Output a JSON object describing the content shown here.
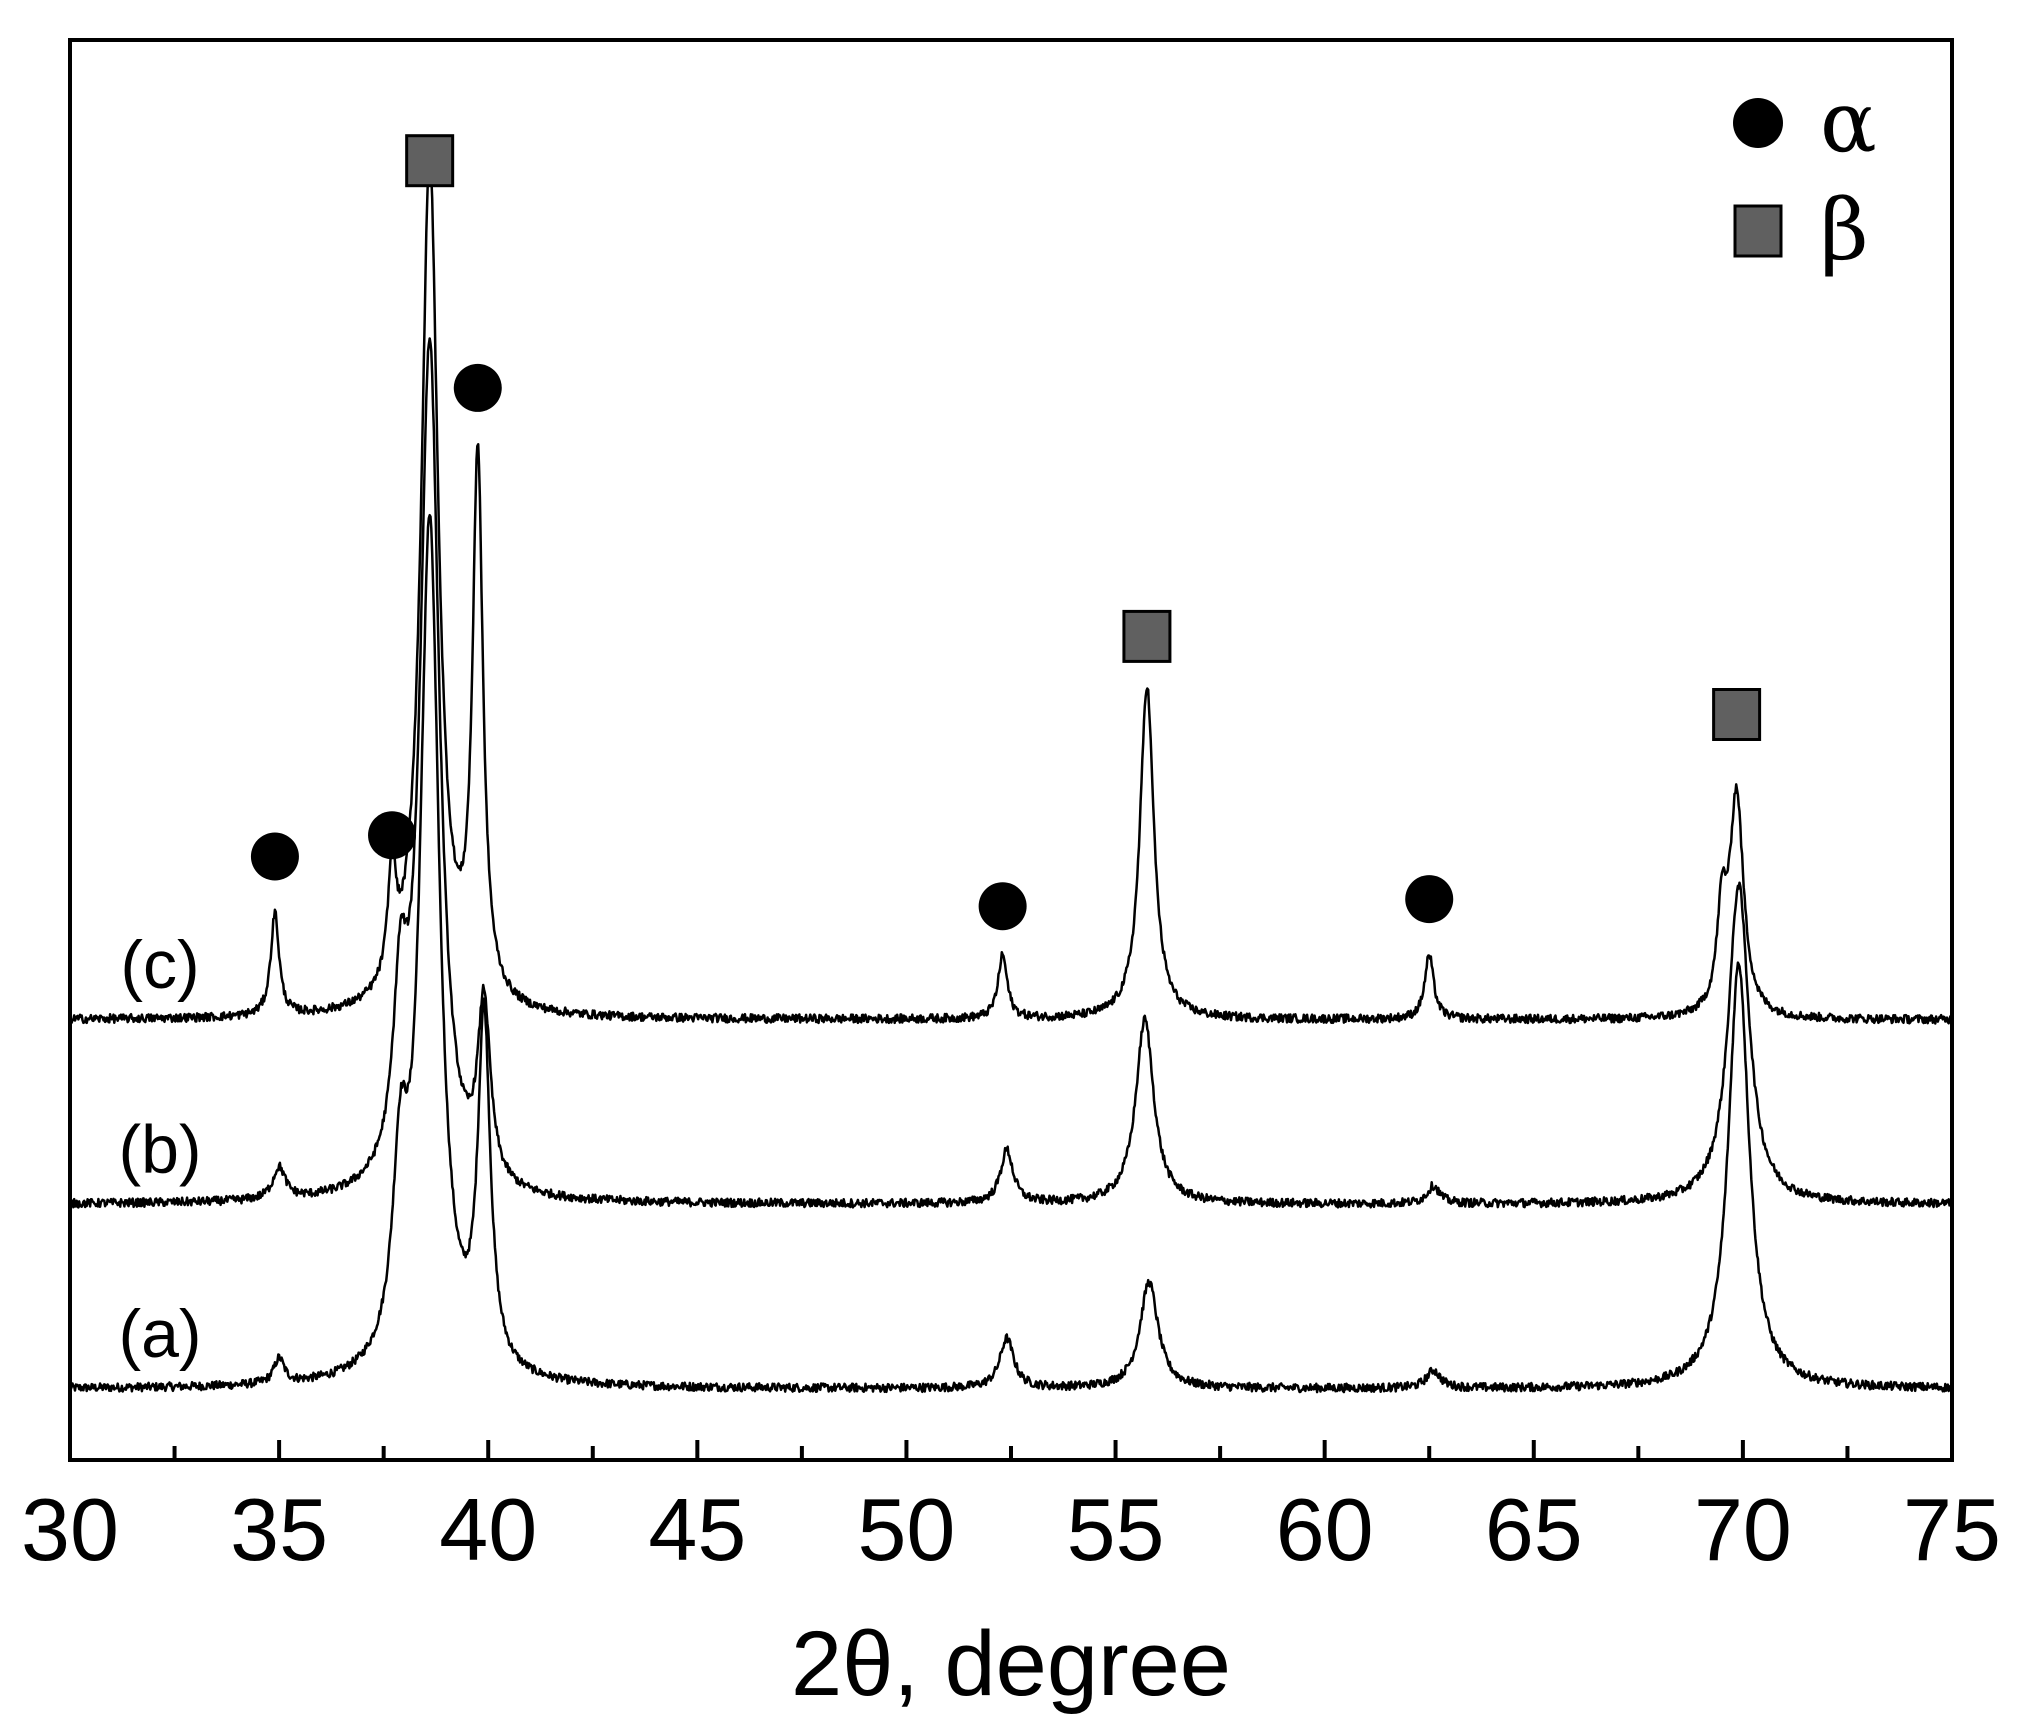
{
  "chart_data": {
    "type": "line",
    "title": "",
    "xlabel": "2θ, degree",
    "ylabel": "",
    "xlim": [
      30,
      75
    ],
    "xticks": [
      "30",
      "35",
      "40",
      "45",
      "50",
      "55",
      "60",
      "65",
      "70",
      "75"
    ],
    "y_ticks_shown": false,
    "grid": false,
    "legend": {
      "placement": "top-right",
      "entries": [
        {
          "label": "α",
          "marker": "circle",
          "color": "#000000"
        },
        {
          "label": "β",
          "marker": "square",
          "color": "#606060"
        }
      ]
    },
    "series": [
      {
        "label": "(a)",
        "baseline": 1.0,
        "peaks": [
          {
            "x": 35.0,
            "height": 0.35,
            "width": 0.15
          },
          {
            "x": 37.9,
            "height": 2.5,
            "width": 0.22
          },
          {
            "x": 38.6,
            "height": 12.0,
            "width": 0.28
          },
          {
            "x": 39.9,
            "height": 4.9,
            "width": 0.18
          },
          {
            "x": 52.4,
            "height": 0.7,
            "width": 0.2
          },
          {
            "x": 55.8,
            "height": 1.5,
            "width": 0.26
          },
          {
            "x": 62.6,
            "height": 0.25,
            "width": 0.2
          },
          {
            "x": 69.9,
            "height": 6.0,
            "width": 0.3
          }
        ]
      },
      {
        "label": "(b)",
        "baseline": 3.6,
        "peaks": [
          {
            "x": 35.0,
            "height": 0.45,
            "width": 0.18
          },
          {
            "x": 37.9,
            "height": 2.3,
            "width": 0.2
          },
          {
            "x": 38.6,
            "height": 12.0,
            "width": 0.28
          },
          {
            "x": 39.9,
            "height": 2.5,
            "width": 0.18
          },
          {
            "x": 52.4,
            "height": 0.75,
            "width": 0.18
          },
          {
            "x": 55.7,
            "height": 2.6,
            "width": 0.26
          },
          {
            "x": 62.6,
            "height": 0.25,
            "width": 0.18
          },
          {
            "x": 69.9,
            "height": 4.5,
            "width": 0.3
          }
        ]
      },
      {
        "label": "(c)",
        "baseline": 6.2,
        "peaks": [
          {
            "x": 34.9,
            "height": 1.45,
            "width": 0.12
          },
          {
            "x": 37.7,
            "height": 1.55,
            "width": 0.12
          },
          {
            "x": 38.6,
            "height": 12.0,
            "width": 0.25
          },
          {
            "x": 39.75,
            "height": 7.6,
            "width": 0.15
          },
          {
            "x": 52.3,
            "height": 0.9,
            "width": 0.13
          },
          {
            "x": 55.75,
            "height": 4.7,
            "width": 0.2
          },
          {
            "x": 62.5,
            "height": 0.9,
            "width": 0.13
          },
          {
            "x": 69.5,
            "height": 1.3,
            "width": 0.14
          },
          {
            "x": 69.85,
            "height": 3.1,
            "width": 0.2
          }
        ]
      }
    ],
    "phase_markers": [
      {
        "phase": "α",
        "marker": "circle",
        "x": 34.9,
        "y": 8.5
      },
      {
        "phase": "α",
        "marker": "circle",
        "x": 37.7,
        "y": 8.8
      },
      {
        "phase": "β",
        "marker": "square",
        "x": 38.6,
        "y": 18.3
      },
      {
        "phase": "α",
        "marker": "circle",
        "x": 39.75,
        "y": 15.1
      },
      {
        "phase": "α",
        "marker": "circle",
        "x": 52.3,
        "y": 7.8
      },
      {
        "phase": "β",
        "marker": "square",
        "x": 55.75,
        "y": 11.6
      },
      {
        "phase": "α",
        "marker": "circle",
        "x": 62.5,
        "y": 7.9
      },
      {
        "phase": "β",
        "marker": "square",
        "x": 69.85,
        "y": 10.5
      }
    ],
    "ylim": [
      0,
      20
    ]
  }
}
